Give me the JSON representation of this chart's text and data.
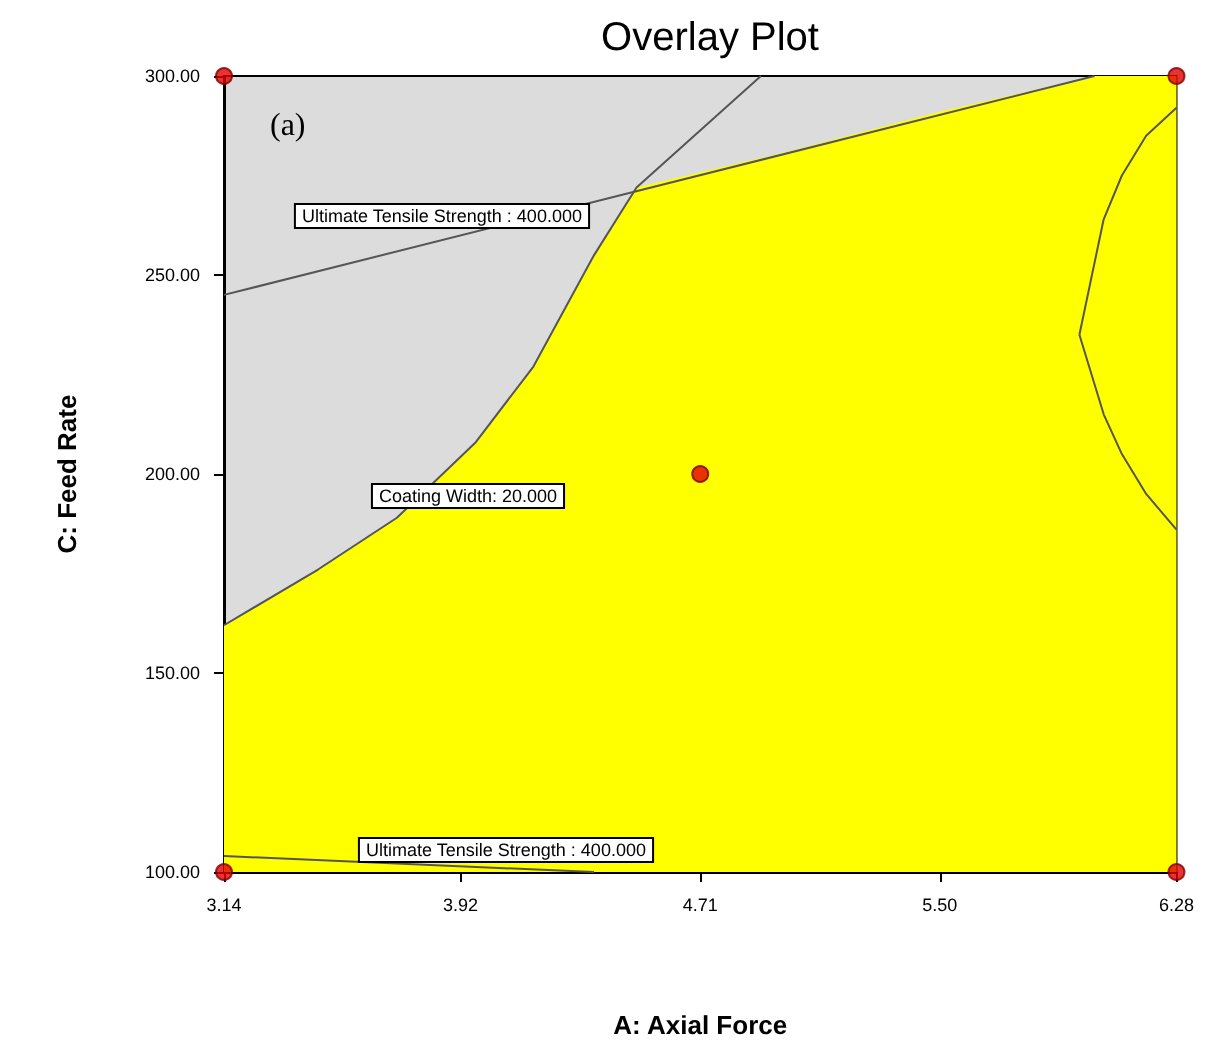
{
  "chart_data": {
    "type": "area",
    "title": "Overlay Plot",
    "xlabel": "A: Axial Force",
    "ylabel": "C: Feed Rate",
    "xlim": [
      3.14,
      6.28
    ],
    "ylim": [
      100,
      300
    ],
    "xticks": [
      3.14,
      3.92,
      4.71,
      {
        "value": 5.5,
        "label": "5.50"
      },
      6.28
    ],
    "yticks": [
      {
        "value": 100,
        "label": "100.00"
      },
      {
        "value": 150,
        "label": "150.00"
      },
      {
        "value": 200,
        "label": "200.00"
      },
      {
        "value": 250,
        "label": "250.00"
      },
      {
        "value": 300,
        "label": "300.00"
      }
    ],
    "grid": false,
    "series": [
      {
        "color": "#ffff00",
        "x": [
          3.14,
          3.45,
          3.71,
          3.97,
          4.16,
          4.36,
          4.5,
          5.0,
          5.5,
          6.01,
          6.28
        ],
        "values": [
          162,
          176,
          189,
          208,
          227,
          255,
          272,
          281,
          291,
          300,
          300
        ]
      },
      {
        "type": "line",
        "color": "#555555",
        "x": [
          3.14,
          6.01
        ],
        "values": [
          245,
          300
        ]
      },
      {
        "type": "line",
        "color": "#555555",
        "x": [
          3.14,
          3.45,
          3.71,
          3.97,
          4.16,
          4.36,
          4.5,
          4.91
        ],
        "values": [
          162,
          176,
          189,
          208,
          227,
          255,
          272,
          300
        ]
      },
      {
        "type": "line",
        "color": "#555555",
        "x": [
          5.96,
          6.04,
          6.1,
          6.18,
          6.28
        ],
        "values": [
          235,
          215,
          205,
          195,
          186
        ]
      },
      {
        "type": "line",
        "color": "#555555",
        "x": [
          5.96,
          6.04,
          6.1,
          6.18,
          6.28
        ],
        "values": [
          235,
          264,
          275,
          285,
          292
        ]
      },
      {
        "type": "line",
        "color": "#555555",
        "x": [
          3.14,
          4.36
        ],
        "values": [
          104,
          100
        ]
      },
      {
        "type": "scatter",
        "color": "#e00000",
        "marker": "circle",
        "x": [
          3.14,
          3.14,
          6.28,
          6.28,
          4.71
        ],
        "values": [
          100,
          300,
          100,
          300,
          200
        ]
      }
    ],
    "annotations": [
      "(a)",
      "Ultimate Tensile Strength : 400.000",
      "Coating Width: 20.000",
      "Ultimate Tensile Strength : 400.000"
    ]
  }
}
